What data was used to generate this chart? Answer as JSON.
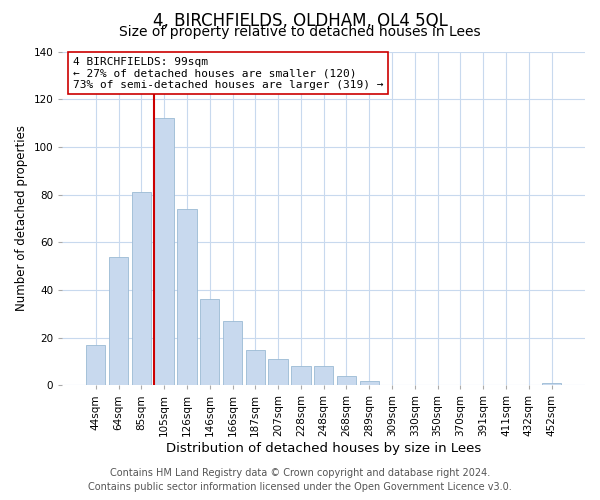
{
  "title": "4, BIRCHFIELDS, OLDHAM, OL4 5QL",
  "subtitle": "Size of property relative to detached houses in Lees",
  "xlabel": "Distribution of detached houses by size in Lees",
  "ylabel": "Number of detached properties",
  "bar_labels": [
    "44sqm",
    "64sqm",
    "85sqm",
    "105sqm",
    "126sqm",
    "146sqm",
    "166sqm",
    "187sqm",
    "207sqm",
    "228sqm",
    "248sqm",
    "268sqm",
    "289sqm",
    "309sqm",
    "330sqm",
    "350sqm",
    "370sqm",
    "391sqm",
    "411sqm",
    "432sqm",
    "452sqm"
  ],
  "bar_values": [
    17,
    54,
    81,
    112,
    74,
    36,
    27,
    15,
    11,
    8,
    8,
    4,
    2,
    0,
    0,
    0,
    0,
    0,
    0,
    0,
    1
  ],
  "bar_color": "#c8d9ee",
  "bar_edge_color": "#9bbad4",
  "vline_color": "#cc0000",
  "vline_x_index": 3,
  "ylim": [
    0,
    140
  ],
  "yticks": [
    0,
    20,
    40,
    60,
    80,
    100,
    120,
    140
  ],
  "annotation_title": "4 BIRCHFIELDS: 99sqm",
  "annotation_line1": "← 27% of detached houses are smaller (120)",
  "annotation_line2": "73% of semi-detached houses are larger (319) →",
  "annotation_box_facecolor": "#ffffff",
  "annotation_box_edgecolor": "#cc0000",
  "footer_line1": "Contains HM Land Registry data © Crown copyright and database right 2024.",
  "footer_line2": "Contains public sector information licensed under the Open Government Licence v3.0.",
  "bg_color": "#ffffff",
  "grid_color": "#c8d9ee",
  "title_fontsize": 12,
  "subtitle_fontsize": 10,
  "xlabel_fontsize": 9.5,
  "ylabel_fontsize": 8.5,
  "tick_fontsize": 7.5,
  "annotation_fontsize": 8,
  "footer_fontsize": 7
}
